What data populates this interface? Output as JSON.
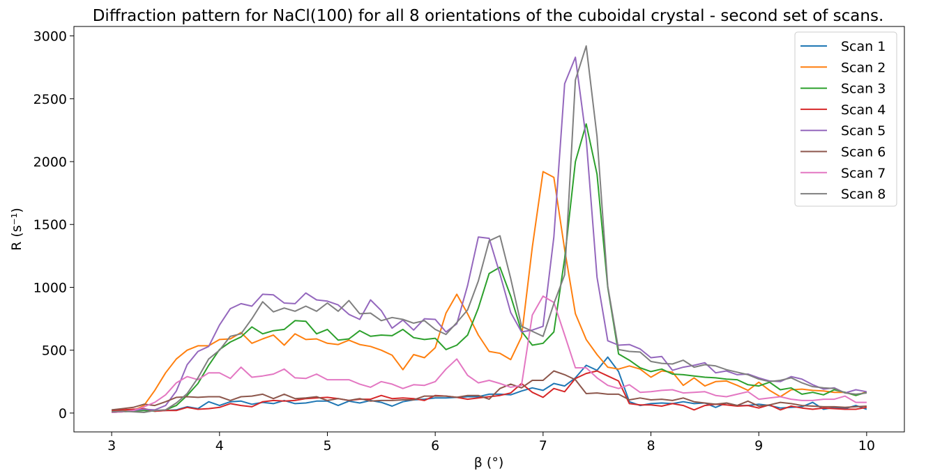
{
  "chart_data": {
    "type": "line",
    "title": "Diffraction pattern for NaCl(100) for all 8 orientations of the cuboidal crystal - second set of scans.",
    "xlabel": "β (°)",
    "ylabel": "R (s⁻¹)",
    "xlim": [
      2.65,
      10.35
    ],
    "ylim": [
      -150,
      3075
    ],
    "xticks": [
      3,
      4,
      5,
      6,
      7,
      8,
      9,
      10
    ],
    "yticks": [
      0,
      500,
      1000,
      1500,
      2000,
      2500,
      3000
    ],
    "grid": false,
    "legend_position": "top-right",
    "x": [
      3.0,
      3.1,
      3.2,
      3.3,
      3.4,
      3.5,
      3.6,
      3.7,
      3.8,
      3.9,
      4.0,
      4.1,
      4.2,
      4.3,
      4.4,
      4.5,
      4.6,
      4.7,
      4.8,
      4.9,
      5.0,
      5.1,
      5.2,
      5.3,
      5.4,
      5.5,
      5.6,
      5.7,
      5.8,
      5.9,
      6.0,
      6.1,
      6.2,
      6.3,
      6.4,
      6.5,
      6.6,
      6.7,
      6.8,
      6.9,
      7.0,
      7.1,
      7.2,
      7.3,
      7.4,
      7.5,
      7.6,
      7.7,
      7.8,
      7.9,
      8.0,
      8.1,
      8.2,
      8.3,
      8.4,
      8.5,
      8.6,
      8.7,
      8.8,
      8.9,
      9.0,
      9.1,
      9.2,
      9.3,
      9.4,
      9.5,
      9.6,
      9.7,
      9.8,
      9.9,
      10.0
    ],
    "series": [
      {
        "name": "Scan 1",
        "color": "#1f77b4",
        "values": [
          10,
          15,
          20,
          25,
          15,
          20,
          25,
          50,
          35,
          90,
          60,
          90,
          95,
          70,
          85,
          75,
          100,
          75,
          80,
          95,
          95,
          60,
          95,
          80,
          100,
          85,
          55,
          90,
          105,
          110,
          120,
          120,
          125,
          130,
          130,
          150,
          150,
          145,
          175,
          200,
          180,
          235,
          215,
          280,
          380,
          340,
          445,
          330,
          90,
          60,
          75,
          80,
          75,
          90,
          75,
          80,
          45,
          80,
          60,
          60,
          70,
          60,
          40,
          45,
          50,
          85,
          30,
          45,
          35,
          60,
          30
        ]
      },
      {
        "name": "Scan 2",
        "color": "#ff7f0e",
        "values": [
          10,
          15,
          20,
          60,
          180,
          320,
          430,
          500,
          535,
          535,
          585,
          590,
          640,
          555,
          590,
          620,
          540,
          630,
          585,
          590,
          555,
          545,
          580,
          545,
          530,
          500,
          460,
          345,
          465,
          440,
          520,
          795,
          945,
          790,
          620,
          490,
          475,
          425,
          605,
          1320,
          1920,
          1875,
          1300,
          790,
          585,
          465,
          365,
          350,
          375,
          350,
          285,
          335,
          325,
          220,
          280,
          215,
          250,
          255,
          220,
          180,
          245,
          180,
          130,
          185,
          190,
          180,
          175,
          165,
          165,
          140,
          170
        ]
      },
      {
        "name": "Scan 3",
        "color": "#2ca02c",
        "values": [
          5,
          10,
          15,
          20,
          15,
          25,
          60,
          140,
          235,
          380,
          505,
          565,
          605,
          685,
          630,
          655,
          665,
          735,
          730,
          630,
          665,
          580,
          590,
          655,
          610,
          620,
          615,
          665,
          600,
          585,
          595,
          505,
          540,
          620,
          835,
          1110,
          1160,
          930,
          650,
          540,
          555,
          645,
          1230,
          2000,
          2300,
          1900,
          1000,
          470,
          420,
          360,
          330,
          350,
          310,
          305,
          295,
          285,
          280,
          270,
          265,
          225,
          215,
          245,
          185,
          200,
          150,
          165,
          145,
          185,
          165,
          140,
          165
        ]
      },
      {
        "name": "Scan 4",
        "color": "#d62728",
        "values": [
          20,
          25,
          30,
          35,
          15,
          20,
          20,
          45,
          30,
          35,
          45,
          75,
          60,
          50,
          90,
          100,
          95,
          100,
          115,
          120,
          125,
          115,
          100,
          110,
          110,
          140,
          115,
          120,
          115,
          100,
          140,
          135,
          125,
          110,
          120,
          130,
          140,
          160,
          235,
          165,
          125,
          195,
          170,
          275,
          315,
          335,
          295,
          255,
          75,
          65,
          65,
          55,
          75,
          60,
          25,
          60,
          70,
          65,
          55,
          60,
          40,
          65,
          25,
          55,
          40,
          30,
          40,
          35,
          30,
          30,
          45
        ]
      },
      {
        "name": "Scan 5",
        "color": "#9467bd",
        "values": [
          5,
          10,
          20,
          30,
          25,
          60,
          175,
          385,
          490,
          530,
          700,
          830,
          870,
          850,
          945,
          940,
          875,
          870,
          955,
          900,
          890,
          860,
          785,
          745,
          900,
          815,
          675,
          740,
          660,
          750,
          745,
          645,
          710,
          1015,
          1400,
          1390,
          1105,
          800,
          645,
          660,
          690,
          1400,
          2620,
          2830,
          2180,
          1080,
          575,
          540,
          545,
          510,
          440,
          450,
          340,
          365,
          380,
          400,
          320,
          335,
          305,
          310,
          280,
          255,
          250,
          290,
          270,
          225,
          190,
          200,
          160,
          185,
          170
        ]
      },
      {
        "name": "Scan 6",
        "color": "#8c564b",
        "values": [
          25,
          35,
          45,
          70,
          60,
          90,
          125,
          130,
          125,
          130,
          130,
          100,
          130,
          135,
          150,
          115,
          150,
          115,
          120,
          130,
          100,
          115,
          100,
          115,
          95,
          100,
          100,
          105,
          105,
          135,
          135,
          135,
          125,
          140,
          140,
          110,
          195,
          230,
          200,
          260,
          260,
          335,
          305,
          265,
          155,
          160,
          150,
          150,
          105,
          120,
          105,
          110,
          100,
          120,
          90,
          80,
          70,
          80,
          60,
          95,
          55,
          65,
          85,
          75,
          60,
          55,
          50,
          50,
          45,
          50,
          55
        ]
      },
      {
        "name": "Scan 7",
        "color": "#e377c2",
        "values": [
          5,
          10,
          20,
          50,
          85,
          145,
          240,
          290,
          265,
          320,
          320,
          275,
          365,
          285,
          295,
          310,
          350,
          280,
          275,
          310,
          265,
          265,
          265,
          230,
          205,
          250,
          230,
          195,
          225,
          220,
          250,
          350,
          430,
          300,
          240,
          260,
          235,
          205,
          220,
          780,
          930,
          880,
          620,
          360,
          360,
          280,
          220,
          195,
          225,
          165,
          170,
          180,
          185,
          160,
          165,
          170,
          140,
          130,
          150,
          170,
          110,
          120,
          130,
          110,
          100,
          100,
          110,
          110,
          135,
          85,
          85
        ]
      },
      {
        "name": "Scan 8",
        "color": "#7f7f7f",
        "values": [
          10,
          15,
          10,
          5,
          20,
          25,
          80,
          155,
          280,
          430,
          500,
          610,
          630,
          750,
          885,
          805,
          835,
          810,
          850,
          810,
          875,
          810,
          895,
          790,
          795,
          735,
          760,
          745,
          715,
          735,
          665,
          625,
          720,
          820,
          1050,
          1370,
          1410,
          1070,
          690,
          650,
          610,
          870,
          1100,
          2650,
          2920,
          2200,
          1010,
          505,
          490,
          485,
          410,
          395,
          390,
          420,
          365,
          385,
          375,
          345,
          325,
          305,
          270,
          250,
          260,
          280,
          240,
          210,
          200,
          195,
          160,
          150,
          160
        ]
      }
    ]
  }
}
